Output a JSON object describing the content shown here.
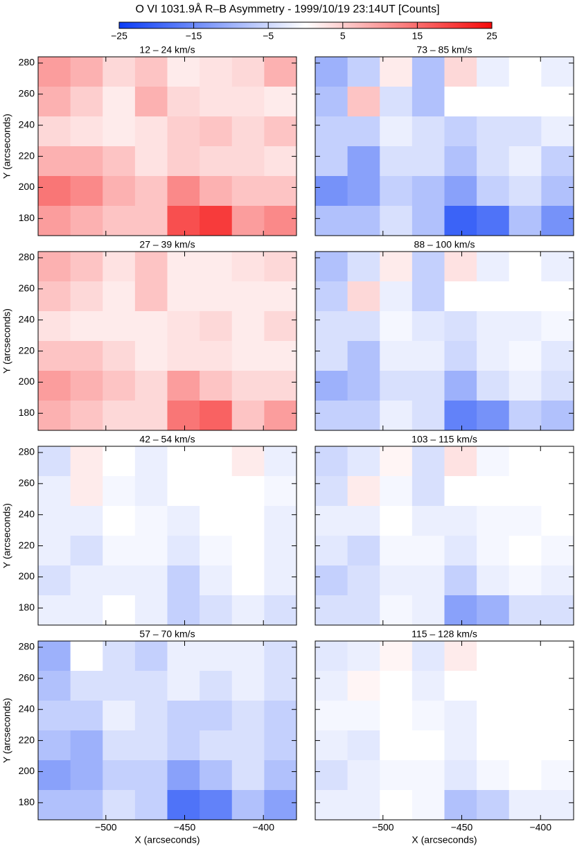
{
  "title": "O VI 1031.9Å R–B Asymmetry - 1999/10/19 23:14UT [Counts]",
  "colorbar": {
    "lim": [
      -25,
      25
    ],
    "colors": [
      "#0a3cf5",
      "#ffffff",
      "#f50a0a"
    ],
    "ticks": [
      {
        "value": -25,
        "label": "−25"
      },
      {
        "value": -15,
        "label": "−15"
      },
      {
        "value": -5,
        "label": "−5"
      },
      5,
      15,
      25
    ]
  },
  "chart_data": [
    {
      "type": "heatmap",
      "title": "12 – 24 km/s",
      "ylabel": "Y (arcseconds)",
      "xlim": [
        -543,
        -379
      ],
      "ylim": [
        169,
        284
      ],
      "xticks": [
        {
          "value": -500,
          "label": "−500"
        },
        {
          "value": -450,
          "label": "−450"
        },
        {
          "value": -400,
          "label": "−400"
        }
      ],
      "yticks": [
        180,
        200,
        220,
        240,
        260,
        280
      ],
      "z": [
        [
          10,
          8,
          4,
          6,
          2,
          3,
          4,
          8
        ],
        [
          8,
          5,
          2,
          8,
          4,
          3,
          3,
          2
        ],
        [
          4,
          3,
          2,
          3,
          5,
          6,
          4,
          6
        ],
        [
          8,
          8,
          6,
          3,
          5,
          4,
          4,
          3
        ],
        [
          14,
          12,
          8,
          6,
          12,
          8,
          6,
          6
        ],
        [
          10,
          8,
          6,
          6,
          18,
          20,
          10,
          12
        ]
      ]
    },
    {
      "type": "heatmap",
      "title": "73 – 85 km/s",
      "xlim": [
        -543,
        -379
      ],
      "ylim": [
        169,
        284
      ],
      "xticks": [
        {
          "value": -500,
          "label": "−500"
        },
        {
          "value": -450,
          "label": "−450"
        },
        {
          "value": -400,
          "label": "−400"
        }
      ],
      "yticks": [
        180,
        200,
        220,
        240,
        260,
        280
      ],
      "z": [
        [
          -10,
          -6,
          2,
          -8,
          4,
          -2,
          0,
          -2
        ],
        [
          -8,
          6,
          -4,
          -8,
          0,
          0,
          0,
          0
        ],
        [
          -6,
          -6,
          -2,
          -4,
          -6,
          -4,
          -4,
          -2
        ],
        [
          -6,
          -12,
          -4,
          -4,
          -8,
          -4,
          -2,
          -6
        ],
        [
          -14,
          -12,
          -6,
          -8,
          -12,
          -6,
          -4,
          -8
        ],
        [
          -8,
          -8,
          -4,
          -8,
          -20,
          -18,
          -8,
          -14
        ]
      ]
    },
    {
      "type": "heatmap",
      "title": "27 – 39 km/s",
      "ylabel": "Y (arcseconds)",
      "xlim": [
        -543,
        -379
      ],
      "ylim": [
        169,
        284
      ],
      "xticks": [
        {
          "value": -500,
          "label": "−500"
        },
        {
          "value": -450,
          "label": "−450"
        },
        {
          "value": -400,
          "label": "−400"
        }
      ],
      "yticks": [
        180,
        200,
        220,
        240,
        260,
        280
      ],
      "z": [
        [
          8,
          6,
          3,
          6,
          2,
          2,
          3,
          4
        ],
        [
          6,
          4,
          2,
          6,
          2,
          2,
          2,
          2
        ],
        [
          3,
          2,
          2,
          2,
          3,
          4,
          2,
          4
        ],
        [
          6,
          6,
          4,
          2,
          3,
          3,
          2,
          2
        ],
        [
          10,
          8,
          6,
          4,
          10,
          6,
          4,
          4
        ],
        [
          8,
          6,
          4,
          4,
          14,
          16,
          6,
          10
        ]
      ]
    },
    {
      "type": "heatmap",
      "title": "88 – 100 km/s",
      "xlim": [
        -543,
        -379
      ],
      "ylim": [
        169,
        284
      ],
      "xticks": [
        {
          "value": -500,
          "label": "−500"
        },
        {
          "value": -450,
          "label": "−450"
        },
        {
          "value": -400,
          "label": "−400"
        }
      ],
      "yticks": [
        180,
        200,
        220,
        240,
        260,
        280
      ],
      "z": [
        [
          -8,
          -4,
          2,
          -6,
          3,
          -2,
          0,
          -2
        ],
        [
          -6,
          4,
          -2,
          -6,
          0,
          0,
          0,
          0
        ],
        [
          -4,
          -4,
          -1,
          -3,
          -4,
          -2,
          -2,
          -1
        ],
        [
          -4,
          -8,
          -2,
          -2,
          -5,
          -2,
          -1,
          -3
        ],
        [
          -10,
          -8,
          -4,
          -4,
          -10,
          -4,
          -2,
          -4
        ],
        [
          -6,
          -6,
          -2,
          -4,
          -16,
          -14,
          -6,
          -8
        ]
      ]
    },
    {
      "type": "heatmap",
      "title": "42 – 54 km/s",
      "ylabel": "Y (arcseconds)",
      "xlim": [
        -543,
        -379
      ],
      "ylim": [
        169,
        284
      ],
      "xticks": [
        {
          "value": -500,
          "label": "−500"
        },
        {
          "value": -450,
          "label": "−450"
        },
        {
          "value": -400,
          "label": "−400"
        }
      ],
      "yticks": [
        180,
        200,
        220,
        240,
        260,
        280
      ],
      "z": [
        [
          -4,
          2,
          0,
          -2,
          0,
          0,
          2,
          -2
        ],
        [
          -2,
          2,
          -1,
          -2,
          0,
          0,
          0,
          -1
        ],
        [
          -2,
          -2,
          0,
          -1,
          -2,
          0,
          0,
          -2
        ],
        [
          -2,
          -4,
          -1,
          -1,
          -3,
          -1,
          0,
          -2
        ],
        [
          -4,
          -2,
          -2,
          -2,
          -6,
          -2,
          0,
          -2
        ],
        [
          -2,
          -2,
          0,
          -2,
          -6,
          -4,
          -2,
          -4
        ]
      ]
    },
    {
      "type": "heatmap",
      "title": "103 – 115 km/s",
      "xlim": [
        -543,
        -379
      ],
      "ylim": [
        169,
        284
      ],
      "xticks": [
        {
          "value": -500,
          "label": "−500"
        },
        {
          "value": -450,
          "label": "−450"
        },
        {
          "value": -400,
          "label": "−400"
        }
      ],
      "yticks": [
        180,
        200,
        220,
        240,
        260,
        280
      ],
      "z": [
        [
          -5,
          -3,
          1,
          -4,
          3,
          -1,
          0,
          0
        ],
        [
          -4,
          2,
          -1,
          -4,
          0,
          0,
          0,
          0
        ],
        [
          -2,
          -2,
          0,
          -2,
          -2,
          -1,
          -1,
          0
        ],
        [
          -3,
          -5,
          -1,
          -1,
          -3,
          -1,
          0,
          -1
        ],
        [
          -6,
          -4,
          -2,
          -2,
          -6,
          -2,
          -1,
          -2
        ],
        [
          -4,
          -4,
          -1,
          -2,
          -12,
          -10,
          -4,
          -4
        ]
      ]
    },
    {
      "type": "heatmap",
      "title": "57 – 70 km/s",
      "ylabel": "Y (arcseconds)",
      "xlabel": "X (arcseconds)",
      "xlim": [
        -543,
        -379
      ],
      "ylim": [
        169,
        284
      ],
      "xticks": [
        {
          "value": -500,
          "label": "−500"
        },
        {
          "value": -450,
          "label": "−450"
        },
        {
          "value": -400,
          "label": "−400"
        }
      ],
      "yticks": [
        180,
        200,
        220,
        240,
        260,
        280
      ],
      "z": [
        [
          -10,
          0,
          -4,
          -6,
          -2,
          -2,
          -2,
          -4
        ],
        [
          -8,
          -4,
          -4,
          -4,
          -2,
          -4,
          -2,
          -4
        ],
        [
          -6,
          -6,
          -2,
          -4,
          -6,
          -6,
          -4,
          -6
        ],
        [
          -8,
          -10,
          -4,
          -4,
          -6,
          -4,
          -4,
          -6
        ],
        [
          -12,
          -10,
          -6,
          -6,
          -12,
          -8,
          -4,
          -8
        ],
        [
          -8,
          -8,
          -4,
          -6,
          -18,
          -16,
          -8,
          -12
        ]
      ]
    },
    {
      "type": "heatmap",
      "title": "115 – 128 km/s",
      "xlabel": "X (arcseconds)",
      "xlim": [
        -543,
        -379
      ],
      "ylim": [
        169,
        284
      ],
      "xticks": [
        {
          "value": -500,
          "label": "−500"
        },
        {
          "value": -450,
          "label": "−450"
        },
        {
          "value": -400,
          "label": "−400"
        }
      ],
      "yticks": [
        180,
        200,
        220,
        240,
        260,
        280
      ],
      "z": [
        [
          -3,
          -2,
          1,
          -3,
          2,
          0,
          0,
          0
        ],
        [
          -2,
          1,
          0,
          -2,
          0,
          0,
          0,
          0
        ],
        [
          -1,
          -1,
          0,
          -1,
          -2,
          0,
          0,
          0
        ],
        [
          -2,
          -3,
          0,
          0,
          -2,
          0,
          0,
          0
        ],
        [
          -4,
          -2,
          -1,
          -1,
          -3,
          -1,
          0,
          -1
        ],
        [
          -2,
          -2,
          0,
          -1,
          -8,
          -6,
          -2,
          -2
        ]
      ]
    }
  ]
}
